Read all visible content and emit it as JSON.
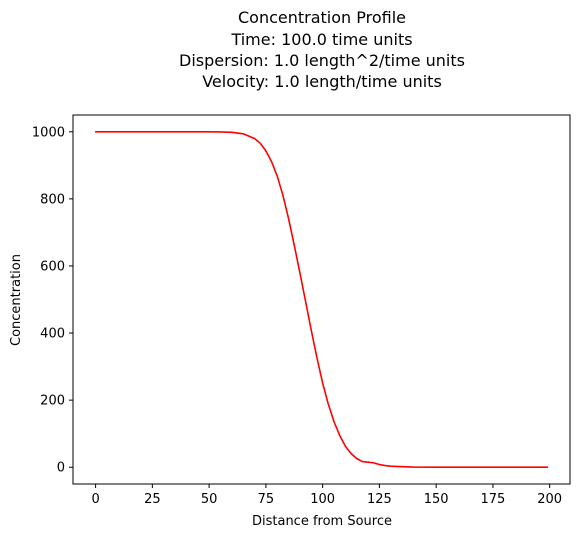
{
  "chart_data": {
    "type": "line",
    "title": [
      "Concentration Profile",
      "Time: 100.0 time units",
      "Dispersion: 1.0 length^2/time units",
      "Velocity: 1.0 length/time units"
    ],
    "xlabel": "Distance from Source",
    "ylabel": "Concentration",
    "xlim": [
      -9.95,
      208.95
    ],
    "ylim": [
      -50,
      1050
    ],
    "xticks": [
      0,
      25,
      50,
      75,
      100,
      125,
      150,
      175,
      200
    ],
    "yticks": [
      0,
      200,
      400,
      600,
      800,
      1000
    ],
    "grid": false,
    "series": [
      {
        "color": "#ff0000",
        "x": [
          0,
          10,
          20,
          30,
          40,
          50,
          55,
          60,
          65,
          70,
          72.5,
          75,
          77.5,
          80,
          82.5,
          85,
          87.5,
          90,
          92.5,
          95,
          97.5,
          100,
          102.5,
          105,
          107.5,
          110,
          112.5,
          115,
          117.5,
          120,
          122.5,
          125,
          127.5,
          130,
          135,
          140,
          150,
          160,
          175,
          199
        ],
        "y": [
          1000,
          1000,
          1000,
          1000,
          1000,
          999.9,
          999.5,
          998.5,
          994.0,
          980.0,
          966.0,
          943.0,
          911.0,
          868.0,
          811.0,
          741.0,
          662.0,
          579.0,
          494.0,
          408.0,
          326.0,
          251.0,
          188.0,
          136.0,
          95.0,
          63.0,
          41.0,
          26.0,
          17.0,
          15.0,
          13.0,
          8.0,
          5.0,
          3.0,
          1.5,
          0.5,
          0.1,
          0,
          0,
          0
        ]
      }
    ]
  }
}
